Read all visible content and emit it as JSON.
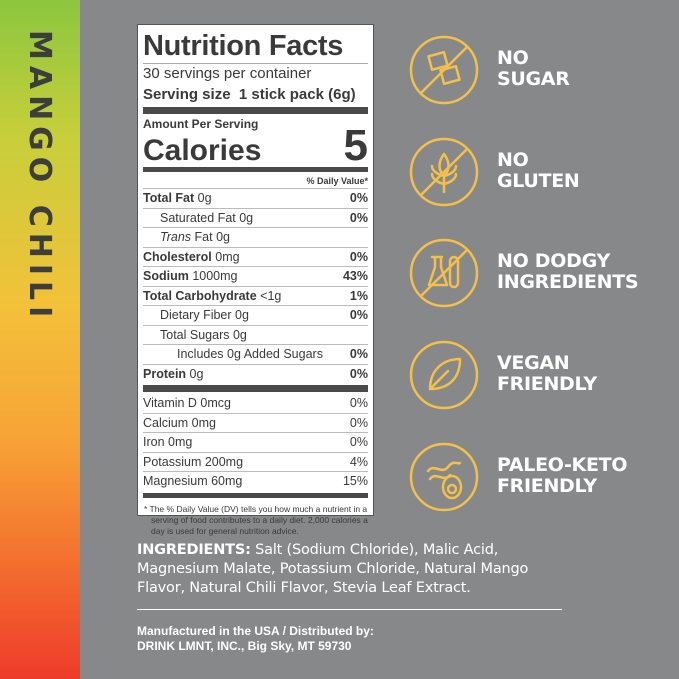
{
  "flavor": "MANGO CHILI",
  "label": {
    "title": "Nutrition Facts",
    "servings": "30 servings per container",
    "serving_size_label": "Serving size",
    "serving_size": "1 stick pack (6g)",
    "amount_per_serving": "Amount Per Serving",
    "calories_label": "Calories",
    "calories": "5",
    "dv_header": "% Daily Value*",
    "rows": [
      {
        "name": "Total Fat",
        "amount": "0g",
        "dv": "0%"
      },
      {
        "name": "Saturated Fat",
        "amount": "0g",
        "dv": "0%"
      },
      {
        "name_italic": "Trans",
        "name": "Fat",
        "amount": "0g",
        "dv": ""
      },
      {
        "name": "Cholesterol",
        "amount": "0mg",
        "dv": "0%"
      },
      {
        "name": "Sodium",
        "amount": "1000mg",
        "dv": "43%"
      },
      {
        "name": "Total Carbohydrate",
        "amount": "<1g",
        "dv": "1%"
      },
      {
        "name": "Dietary Fiber",
        "amount": "0g",
        "dv": "0%"
      },
      {
        "name": "Total Sugars",
        "amount": "0g",
        "dv": ""
      },
      {
        "name": "Includes 0g Added Sugars",
        "amount": "",
        "dv": "0%"
      },
      {
        "name": "Protein",
        "amount": "0g",
        "dv": "0%"
      }
    ],
    "vitamins": [
      {
        "name": "Vitamin D 0mcg",
        "dv": "0%"
      },
      {
        "name": "Calcium 0mg",
        "dv": "0%"
      },
      {
        "name": "Iron 0mg",
        "dv": "0%"
      },
      {
        "name": "Potassium 200mg",
        "dv": "4%"
      },
      {
        "name": "Magnesium 60mg",
        "dv": "15%"
      }
    ],
    "footnote": "* The % Daily Value (DV) tells you how much a nutrient in a serving of food contributes to a daily diet. 2,000 calories a day is used for general nutrition advice."
  },
  "claims": [
    {
      "icon": "sugar-cube-crossed-icon",
      "line1": "NO",
      "line2": "SUGAR"
    },
    {
      "icon": "wheat-crossed-icon",
      "line1": "NO",
      "line2": "GLUTEN"
    },
    {
      "icon": "lab-flask-crossed-icon",
      "line1": "NO DODGY",
      "line2": "INGREDIENTS"
    },
    {
      "icon": "leaf-icon",
      "line1": "VEGAN",
      "line2": "FRIENDLY"
    },
    {
      "icon": "bacon-avocado-icon",
      "line1": "PALEO-KETO",
      "line2": "FRIENDLY"
    }
  ],
  "ingredients": {
    "label": "INGREDIENTS:",
    "text": " Salt (Sodium Chloride), Malic Acid, Magnesium Malate, Potassium Chloride, Natural Mango Flavor, Natural Chili Flavor, Stevia Leaf Extract."
  },
  "manufacturer": {
    "line1": "Manufactured in the USA / Distributed by:",
    "line2": "DRINK LMNT, INC., Big Sky, MT 59730"
  },
  "colors": {
    "background": "#87888a",
    "icon": "#f3c04a",
    "text": "#ffffff",
    "label_text": "#3a3a3a"
  }
}
